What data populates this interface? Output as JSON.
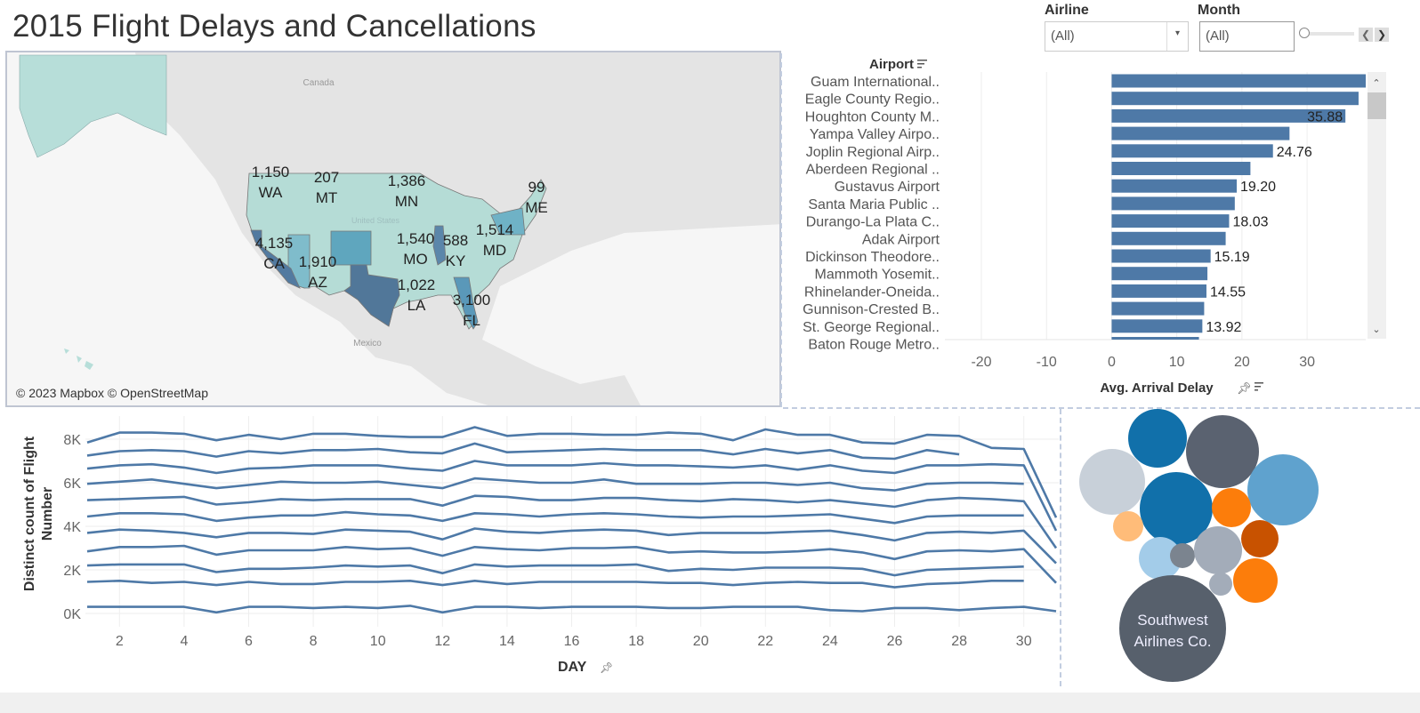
{
  "title": "2015 Flight Delays and Cancellations",
  "filters": {
    "airline": {
      "label": "Airline",
      "value": "(All)"
    },
    "month": {
      "label": "Month",
      "value": "(All)",
      "slider_position": 0
    }
  },
  "map": {
    "attribution": "© 2023 Mapbox © OpenStreetMap",
    "place_labels": [
      "Canada",
      "Mexico",
      "United States"
    ],
    "color_range": [
      "#c8e6df",
      "#4e79a7"
    ],
    "states": [
      {
        "state": "WA",
        "value": "1,150"
      },
      {
        "state": "MT",
        "value": "207"
      },
      {
        "state": "MN",
        "value": "1,386"
      },
      {
        "state": "ME",
        "value": "99"
      },
      {
        "state": "CA",
        "value": "4,135"
      },
      {
        "state": "AZ",
        "value": "1,910"
      },
      {
        "state": "MO",
        "value": "1,540"
      },
      {
        "state": "KY",
        "value": "588"
      },
      {
        "state": "MD",
        "value": "1,514"
      },
      {
        "state": "LA",
        "value": "1,022"
      },
      {
        "state": "FL",
        "value": "3,100"
      }
    ]
  },
  "chart_data": [
    {
      "type": "bar",
      "orientation": "horizontal",
      "row_header": "Airport",
      "xlabel": "Avg. Arrival Delay",
      "xlim": [
        -25.6,
        39
      ],
      "xticks": [
        "-20",
        "-10",
        "0",
        "10",
        "20",
        "30"
      ],
      "color": "#4e79a7",
      "categories": [
        "Guam International..",
        "Eagle County Regio..",
        "Houghton County M..",
        "Yampa Valley Airpo..",
        "Joplin Regional Airp..",
        "Aberdeen Regional ..",
        "Gustavus Airport",
        "Santa Maria Public ..",
        "Durango-La Plata C..",
        "Adak Airport",
        "Dickinson Theodore..",
        "Mammoth Yosemit..",
        "Rhinelander-Oneida..",
        "Gunnison-Crested B..",
        "St. George Regional..",
        "Baton Rouge Metro.."
      ],
      "values": [
        40.2,
        37.9,
        35.88,
        27.3,
        24.76,
        21.3,
        19.2,
        18.9,
        18.03,
        17.5,
        15.19,
        14.7,
        14.55,
        14.2,
        13.92,
        13.4
      ],
      "data_labels": [
        "",
        "",
        "35.88",
        "",
        "24.76",
        "",
        "19.20",
        "",
        "18.03",
        "",
        "15.19",
        "",
        "14.55",
        "",
        "13.92",
        ""
      ]
    },
    {
      "type": "line",
      "xlabel": "DAY",
      "ylabel": "Distinct count of Flight Number",
      "xlim": [
        1,
        31
      ],
      "ylim": [
        -0.4,
        8.7
      ],
      "xticks": [
        "2",
        "4",
        "6",
        "8",
        "10",
        "12",
        "14",
        "16",
        "18",
        "20",
        "22",
        "24",
        "26",
        "28",
        "30"
      ],
      "yticks": [
        "0K",
        "2K",
        "4K",
        "6K",
        "8K"
      ],
      "color": "#4e79a7",
      "x": [
        1,
        2,
        3,
        4,
        5,
        6,
        7,
        8,
        9,
        10,
        11,
        12,
        13,
        14,
        15,
        16,
        17,
        18,
        19,
        20,
        21,
        22,
        23,
        24,
        25,
        26,
        27,
        28,
        29,
        30,
        31
      ],
      "y_unit": "K",
      "series": [
        {
          "values": [
            7.85,
            8.3,
            8.3,
            8.25,
            7.95,
            8.2,
            8.0,
            8.25,
            8.25,
            8.15,
            8.1,
            8.1,
            8.55,
            8.15,
            8.25,
            8.25,
            8.2,
            8.2,
            8.3,
            8.25,
            7.95,
            8.45,
            8.2,
            8.2,
            7.85,
            7.8,
            8.2,
            8.15,
            7.6,
            7.55,
            4.4
          ]
        },
        {
          "values": [
            7.25,
            7.45,
            7.5,
            7.45,
            7.2,
            7.45,
            7.35,
            7.5,
            7.5,
            7.55,
            7.4,
            7.35,
            7.8,
            7.4,
            7.45,
            7.5,
            7.55,
            7.5,
            7.5,
            7.5,
            7.3,
            7.55,
            7.35,
            7.5,
            7.15,
            7.1,
            7.5,
            7.3,
            null,
            null,
            null
          ]
        },
        {
          "values": [
            6.65,
            6.8,
            6.85,
            6.7,
            6.45,
            6.65,
            6.7,
            6.8,
            6.8,
            6.8,
            6.65,
            6.55,
            7.0,
            6.8,
            6.8,
            6.8,
            6.9,
            6.8,
            6.8,
            6.75,
            6.7,
            6.8,
            6.6,
            6.8,
            6.55,
            6.45,
            6.8,
            6.8,
            6.85,
            6.8,
            3.8
          ]
        },
        {
          "values": [
            5.95,
            6.05,
            6.15,
            5.95,
            5.75,
            5.9,
            6.05,
            6.0,
            6.0,
            6.05,
            5.9,
            5.75,
            6.2,
            6.1,
            6.0,
            6.0,
            6.15,
            5.95,
            5.95,
            5.95,
            6.0,
            6.0,
            5.9,
            6.0,
            5.75,
            5.65,
            5.95,
            6.0,
            6.0,
            5.95,
            null
          ]
        },
        {
          "values": [
            5.2,
            5.25,
            5.3,
            5.35,
            5.0,
            5.1,
            5.25,
            5.2,
            5.25,
            5.25,
            5.25,
            4.95,
            5.4,
            5.35,
            5.2,
            5.2,
            5.3,
            5.3,
            5.2,
            5.15,
            5.25,
            5.2,
            5.1,
            5.2,
            5.05,
            4.9,
            5.2,
            5.3,
            5.25,
            5.15,
            3.0
          ]
        },
        {
          "values": [
            4.45,
            4.6,
            4.6,
            4.55,
            4.25,
            4.4,
            4.5,
            4.5,
            4.65,
            4.55,
            4.5,
            4.25,
            4.6,
            4.55,
            4.45,
            4.55,
            4.6,
            4.55,
            4.45,
            4.4,
            4.45,
            4.45,
            4.5,
            4.55,
            4.35,
            4.15,
            4.45,
            4.5,
            4.5,
            4.5,
            null
          ]
        },
        {
          "values": [
            3.7,
            3.85,
            3.8,
            3.7,
            3.5,
            3.7,
            3.7,
            3.65,
            3.85,
            3.8,
            3.75,
            3.4,
            3.9,
            3.75,
            3.7,
            3.8,
            3.85,
            3.8,
            3.6,
            3.7,
            3.7,
            3.7,
            3.75,
            3.8,
            3.6,
            3.35,
            3.7,
            3.75,
            3.7,
            3.8,
            2.3
          ]
        },
        {
          "values": [
            2.85,
            3.05,
            3.05,
            3.1,
            2.7,
            2.9,
            2.9,
            2.9,
            3.05,
            2.95,
            3.0,
            2.65,
            3.05,
            2.95,
            2.9,
            3.0,
            3.0,
            3.05,
            2.8,
            2.85,
            2.8,
            2.8,
            2.85,
            2.95,
            2.8,
            2.5,
            2.85,
            2.9,
            2.85,
            2.95,
            1.4
          ]
        },
        {
          "values": [
            2.2,
            2.25,
            2.25,
            2.25,
            1.9,
            2.05,
            2.05,
            2.1,
            2.2,
            2.15,
            2.2,
            1.85,
            2.25,
            2.15,
            2.2,
            2.2,
            2.2,
            2.25,
            1.95,
            2.05,
            2.0,
            2.1,
            2.1,
            2.1,
            2.05,
            1.75,
            2.0,
            2.05,
            2.1,
            2.15,
            null
          ]
        },
        {
          "values": [
            1.45,
            1.5,
            1.4,
            1.45,
            1.3,
            1.45,
            1.35,
            1.35,
            1.45,
            1.45,
            1.5,
            1.3,
            1.5,
            1.35,
            1.45,
            1.45,
            1.45,
            1.45,
            1.4,
            1.4,
            1.3,
            1.4,
            1.45,
            1.4,
            1.4,
            1.2,
            1.35,
            1.4,
            1.5,
            1.5,
            null
          ]
        },
        {
          "values": [
            0.3,
            0.3,
            0.3,
            0.3,
            0.05,
            0.3,
            0.3,
            0.25,
            0.3,
            0.25,
            0.35,
            0.05,
            0.3,
            0.3,
            0.25,
            0.3,
            0.3,
            0.3,
            0.25,
            0.25,
            0.3,
            0.3,
            0.3,
            0.15,
            0.1,
            0.25,
            0.25,
            0.15,
            0.25,
            0.3,
            0.1
          ]
        }
      ]
    },
    {
      "type": "packed-bubble",
      "labels": [
        "Southwest Airlines Co."
      ],
      "colors": [
        "#1170aa",
        "#5a6270",
        "#c8d0d9",
        "#1170aa",
        "#5fa2ce",
        "#fc7d0b",
        "#ffbc79",
        "#c85200",
        "#a3cce9",
        "#7b848f",
        "#a3acb9",
        "#fc7d0b",
        "#a3acb9",
        "#57606c"
      ]
    }
  ]
}
